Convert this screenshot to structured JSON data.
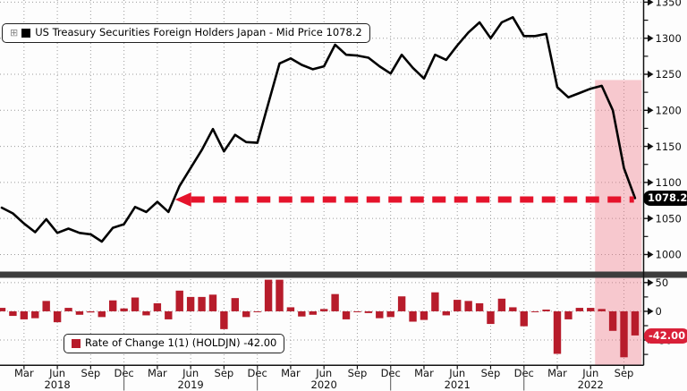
{
  "colors": {
    "line": "#000000",
    "bar": "#b71c2b",
    "arrow": "#e5132b",
    "highlight": "#ee7f8c",
    "price_badge_bg": "#000000",
    "change_badge_bg": "#d92038",
    "grid": "#9a9a9a",
    "divider": "#3d3d3d",
    "axis": "#111111"
  },
  "main_legend": {
    "expand_icon": "⊞",
    "label": "US Treasury Securities Foreign Holders Japan - Mid Price 1078.2"
  },
  "roc_legend": {
    "label": "Rate of Change 1(1) (HOLDJN) -42.00"
  },
  "badges": {
    "last_price": "1078.2",
    "last_change": "-42.00"
  },
  "chart_data": [
    {
      "type": "line",
      "title": "US Treasury Securities Foreign Holders Japan - Mid Price",
      "x_unit": "month",
      "start": "2018-01",
      "end": "2022-10",
      "values": [
        1065,
        1057,
        1043,
        1031,
        1049,
        1030,
        1036,
        1030,
        1028,
        1018,
        1037,
        1042,
        1066,
        1059,
        1073,
        1059,
        1095,
        1120,
        1145,
        1174,
        1143,
        1166,
        1156,
        1155,
        1210,
        1265,
        1272,
        1263,
        1257,
        1261,
        1291,
        1277,
        1276,
        1273,
        1261,
        1251,
        1277,
        1259,
        1244,
        1277,
        1270,
        1290,
        1308,
        1322,
        1300,
        1322,
        1329,
        1303,
        1303,
        1306,
        1232,
        1218,
        1224,
        1230,
        1234,
        1200,
        1120,
        1078.2
      ],
      "last_value": 1078.2,
      "ylim": [
        977,
        1353
      ],
      "yticks": [
        1000,
        1050,
        1100,
        1150,
        1200,
        1250,
        1300,
        1350
      ],
      "y_minor_step": 25,
      "grid": "dotted",
      "legend_position": "top-left",
      "x_ticks": [
        {
          "i": 2,
          "label": "Mar"
        },
        {
          "i": 5,
          "label": "Jun"
        },
        {
          "i": 8,
          "label": "Sep"
        },
        {
          "i": 11,
          "label": "Dec"
        },
        {
          "i": 14,
          "label": "Mar"
        },
        {
          "i": 17,
          "label": "Jun"
        },
        {
          "i": 20,
          "label": "Sep"
        },
        {
          "i": 23,
          "label": "Dec"
        },
        {
          "i": 26,
          "label": "Mar"
        },
        {
          "i": 29,
          "label": "Jun"
        },
        {
          "i": 32,
          "label": "Sep"
        },
        {
          "i": 35,
          "label": "Dec"
        },
        {
          "i": 38,
          "label": "Mar"
        },
        {
          "i": 41,
          "label": "Jun"
        },
        {
          "i": 44,
          "label": "Sep"
        },
        {
          "i": 47,
          "label": "Dec"
        },
        {
          "i": 50,
          "label": "Mar"
        },
        {
          "i": 53,
          "label": "Jun"
        },
        {
          "i": 56,
          "label": "Sep"
        }
      ],
      "year_ticks": [
        {
          "i": 5,
          "label": "2018"
        },
        {
          "i": 17,
          "label": "2019"
        },
        {
          "i": 29,
          "label": "2020"
        },
        {
          "i": 41,
          "label": "2021"
        },
        {
          "i": 53,
          "label": "2022"
        }
      ],
      "year_separators": [
        11,
        23,
        35,
        47
      ],
      "trend_arrow": {
        "y_value": 1078.2,
        "x_start_i": 15.6,
        "x_end_i": 56.9,
        "style": "dashed-left-arrow"
      },
      "highlight_band": {
        "x_start_i": 53.4,
        "x_end_i": 57.6,
        "top_value": 1242
      }
    },
    {
      "type": "bar",
      "title": "Rate of Change 1(1) (HOLDJN)",
      "values": [
        6,
        -8,
        -14,
        -12,
        18,
        -19,
        6,
        -6,
        -2,
        -10,
        19,
        5,
        24,
        -7,
        14,
        -14,
        36,
        25,
        25,
        29,
        -31,
        23,
        -10,
        -1,
        55,
        55,
        7,
        -9,
        -6,
        4,
        30,
        -14,
        -1,
        -3,
        -12,
        -10,
        26,
        -18,
        -15,
        33,
        -7,
        20,
        18,
        14,
        -22,
        22,
        7,
        -26,
        0,
        3,
        -74,
        -14,
        6,
        6,
        4,
        -34,
        -80,
        -42
      ],
      "last_value": -42.0,
      "ylim": [
        -93.5,
        57.5
      ],
      "yticks": [
        -50,
        0,
        50
      ],
      "y_minor_ticks": [
        -75,
        -25,
        25
      ],
      "grid": "dotted",
      "legend_position": "bottom-left"
    }
  ]
}
